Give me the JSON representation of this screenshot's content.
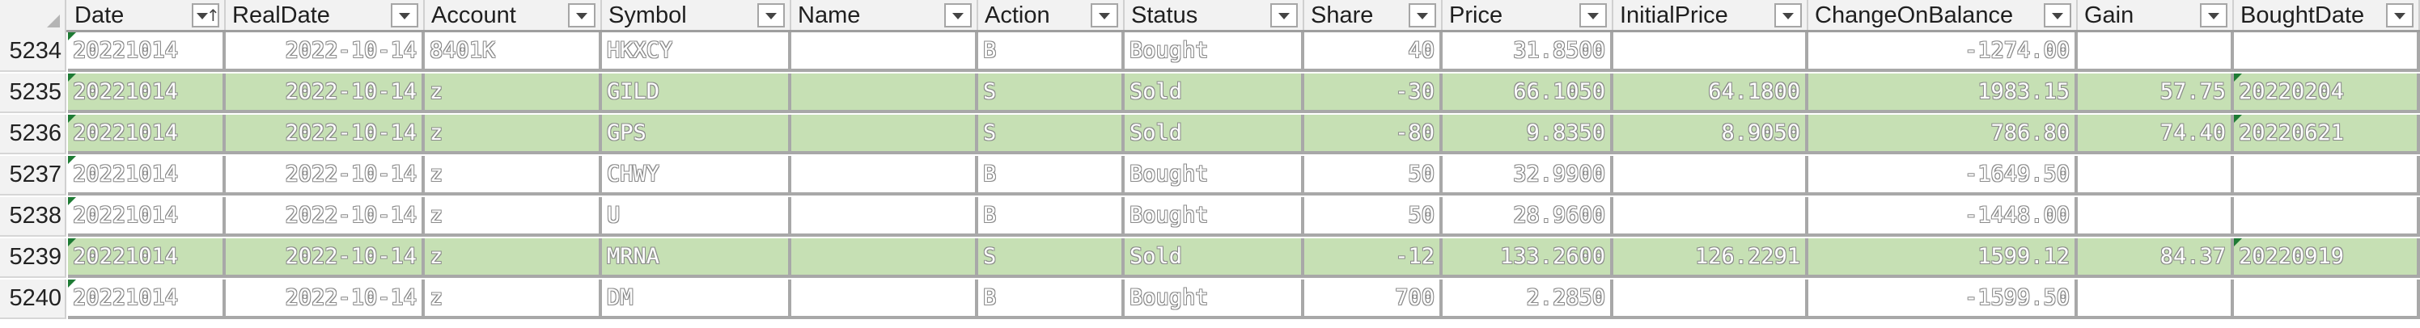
{
  "columns": [
    {
      "label": "Date",
      "sort": true
    },
    {
      "label": "RealDate"
    },
    {
      "label": "Account"
    },
    {
      "label": "Symbol"
    },
    {
      "label": "Name"
    },
    {
      "label": "Action"
    },
    {
      "label": "Status"
    },
    {
      "label": "Share"
    },
    {
      "label": "Price"
    },
    {
      "label": "InitialPrice"
    },
    {
      "label": "ChangeOnBalance"
    },
    {
      "label": "Gain"
    },
    {
      "label": "BoughtDate"
    }
  ],
  "rows": [
    {
      "num": "5234",
      "green": false,
      "cells": [
        "20221014",
        "2022-10-14",
        "8401K",
        "HKXCY",
        "",
        "B",
        "Bought",
        "40",
        "31.8500",
        "",
        "-1274.00",
        "",
        ""
      ]
    },
    {
      "num": "5235",
      "green": true,
      "cells": [
        "20221014",
        "2022-10-14",
        "z",
        "GILD",
        "",
        "S",
        "Sold",
        "-30",
        "66.1050",
        "64.1800",
        "1983.15",
        "57.75",
        "20220204"
      ]
    },
    {
      "num": "5236",
      "green": true,
      "cells": [
        "20221014",
        "2022-10-14",
        "z",
        "GPS",
        "",
        "S",
        "Sold",
        "-80",
        "9.8350",
        "8.9050",
        "786.80",
        "74.40",
        "20220621"
      ]
    },
    {
      "num": "5237",
      "green": false,
      "cells": [
        "20221014",
        "2022-10-14",
        "z",
        "CHWY",
        "",
        "B",
        "Bought",
        "50",
        "32.9900",
        "",
        "-1649.50",
        "",
        ""
      ]
    },
    {
      "num": "5238",
      "green": false,
      "cells": [
        "20221014",
        "2022-10-14",
        "z",
        "U",
        "",
        "B",
        "Bought",
        "50",
        "28.9600",
        "",
        "-1448.00",
        "",
        ""
      ]
    },
    {
      "num": "5239",
      "green": true,
      "cells": [
        "20221014",
        "2022-10-14",
        "z",
        "MRNA",
        "",
        "S",
        "Sold",
        "-12",
        "133.2600",
        "126.2291",
        "1599.12",
        "84.37",
        "20220919"
      ]
    },
    {
      "num": "5240",
      "green": false,
      "cells": [
        "20221014",
        "2022-10-14",
        "z",
        "DM",
        "",
        "B",
        "Bought",
        "700",
        "2.2850",
        "",
        "-1599.50",
        "",
        ""
      ]
    }
  ]
}
